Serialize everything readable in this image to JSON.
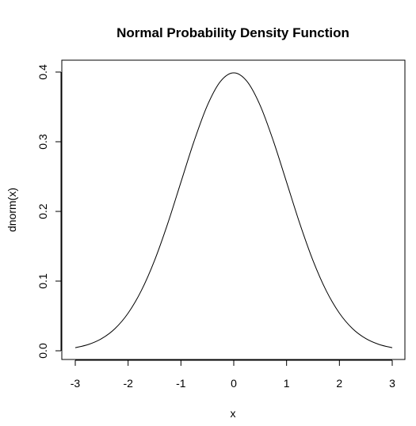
{
  "chart_data": {
    "type": "line",
    "title": "Normal Probability Density Function",
    "xlabel": "x",
    "ylabel": "dnorm(x)",
    "xlim": [
      -3,
      3
    ],
    "ylim": [
      0,
      0.4
    ],
    "x_ticks": [
      -3,
      -2,
      -1,
      0,
      1,
      2,
      3
    ],
    "x_tick_labels": [
      "-3",
      "-2",
      "-1",
      "0",
      "1",
      "2",
      "3"
    ],
    "y_ticks": [
      0,
      0.1,
      0.2,
      0.3,
      0.4
    ],
    "y_tick_labels": [
      "0.0",
      "0.1",
      "0.2",
      "0.3",
      "0.4"
    ],
    "grid": false,
    "series": [
      {
        "color": "#000000",
        "x": [
          -3.0,
          -2.75,
          -2.5,
          -2.25,
          -2.0,
          -1.75,
          -1.5,
          -1.25,
          -1.0,
          -0.75,
          -0.5,
          -0.25,
          0.0,
          0.25,
          0.5,
          0.75,
          1.0,
          1.25,
          1.5,
          1.75,
          2.0,
          2.25,
          2.5,
          2.75,
          3.0
        ],
        "y": [
          0.0044,
          0.0091,
          0.0175,
          0.0317,
          0.054,
          0.0863,
          0.1295,
          0.1826,
          0.242,
          0.3011,
          0.3521,
          0.3867,
          0.3989,
          0.3867,
          0.3521,
          0.3011,
          0.242,
          0.1826,
          0.1295,
          0.0863,
          0.054,
          0.0317,
          0.0175,
          0.0091,
          0.0044
        ]
      }
    ]
  }
}
